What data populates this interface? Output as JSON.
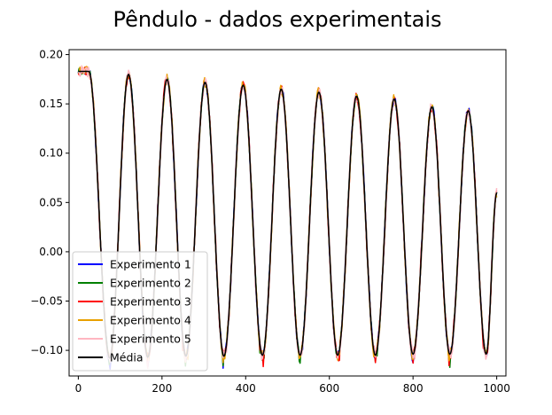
{
  "chart_data": {
    "type": "line",
    "title": "Pêndulo - dados experimentais",
    "xlabel": "",
    "ylabel": "",
    "xlim": [
      -22,
      1022
    ],
    "ylim": [
      -0.126,
      0.205
    ],
    "xticks": [
      0,
      200,
      400,
      600,
      800,
      1000
    ],
    "yticks": [
      -0.1,
      -0.05,
      0.0,
      0.05,
      0.1,
      0.15,
      0.2
    ],
    "xtick_labels": [
      "0",
      "200",
      "400",
      "600",
      "800",
      "1000"
    ],
    "ytick_labels": [
      "−0.10",
      "−0.05",
      "0.00",
      "0.05",
      "0.10",
      "0.15",
      "0.20"
    ],
    "grid": false,
    "legend_position": "lower-left",
    "x_range": [
      0,
      1000
    ],
    "oscillation": {
      "initial_plateau": 0.183,
      "plateau_end_x": 25,
      "peaks": [
        {
          "x": 120,
          "y": 0.18
        },
        {
          "x": 212,
          "y": 0.175
        },
        {
          "x": 303,
          "y": 0.172
        },
        {
          "x": 394,
          "y": 0.169
        },
        {
          "x": 485,
          "y": 0.165
        },
        {
          "x": 575,
          "y": 0.162
        },
        {
          "x": 665,
          "y": 0.158
        },
        {
          "x": 755,
          "y": 0.155
        },
        {
          "x": 845,
          "y": 0.147
        },
        {
          "x": 932,
          "y": 0.143
        }
      ],
      "troughs": [
        {
          "x": 75,
          "y": -0.108
        },
        {
          "x": 166,
          "y": -0.107
        },
        {
          "x": 257,
          "y": -0.106
        },
        {
          "x": 348,
          "y": -0.106
        },
        {
          "x": 440,
          "y": -0.105
        },
        {
          "x": 530,
          "y": -0.105
        },
        {
          "x": 620,
          "y": -0.105
        },
        {
          "x": 710,
          "y": -0.105
        },
        {
          "x": 800,
          "y": -0.104
        },
        {
          "x": 888,
          "y": -0.104
        },
        {
          "x": 975,
          "y": -0.104
        }
      ],
      "end_value": 0.06
    },
    "series": [
      {
        "name": "Experimento 1",
        "color": "#0000ff",
        "noise": 0.004
      },
      {
        "name": "Experimento 2",
        "color": "#008000",
        "noise": 0.003
      },
      {
        "name": "Experimento 3",
        "color": "#ff0000",
        "noise": 0.005
      },
      {
        "name": "Experimento 4",
        "color": "#e8a000",
        "noise": 0.005
      },
      {
        "name": "Experimento 5",
        "color": "#ffb6c1",
        "noise": 0.006
      },
      {
        "name": "Média",
        "color": "#000000",
        "noise": 0.0
      }
    ]
  }
}
